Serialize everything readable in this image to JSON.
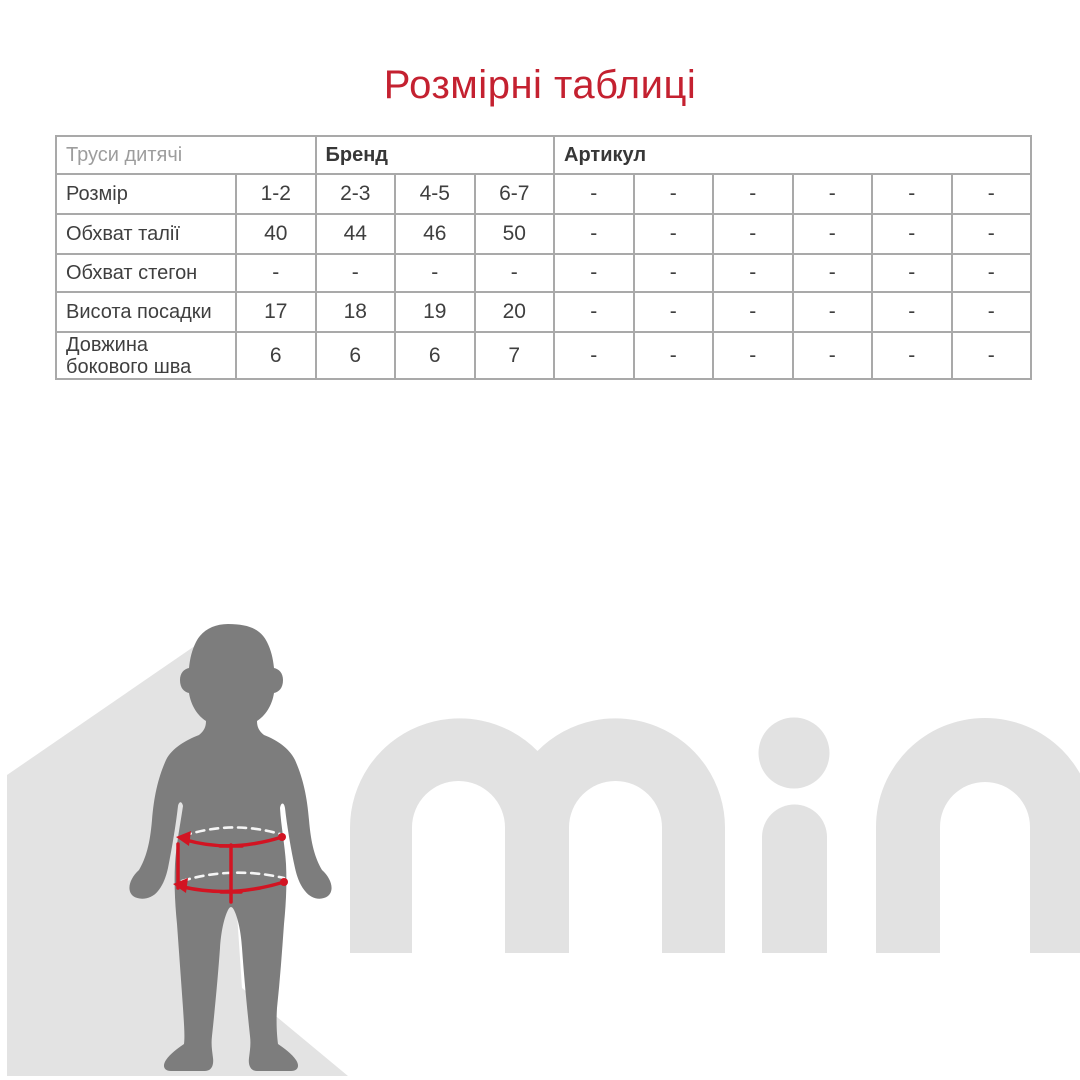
{
  "title": {
    "text": "Розмірні таблиці"
  },
  "size_table": {
    "header": {
      "product": "Труси дитячі",
      "brand": "Бренд",
      "article": "Артикул"
    },
    "rows": [
      {
        "label": "Розмір",
        "values": [
          "1-2",
          "2-3",
          "4-5",
          "6-7",
          "-",
          "-",
          "-",
          "-",
          "-",
          "-"
        ]
      },
      {
        "label": "Обхват талії",
        "values": [
          "40",
          "44",
          "46",
          "50",
          "-",
          "-",
          "-",
          "-",
          "-",
          "-"
        ]
      },
      {
        "label": "Обхват стегон",
        "values": [
          "-",
          "-",
          "-",
          "-",
          "-",
          "-",
          "-",
          "-",
          "-",
          "-"
        ]
      },
      {
        "label": "Висота посадки",
        "values": [
          "17",
          "18",
          "19",
          "20",
          "-",
          "-",
          "-",
          "-",
          "-",
          "-"
        ]
      },
      {
        "label": "Довжина бокового шва",
        "values": [
          "6",
          "6",
          "6",
          "7",
          "-",
          "-",
          "-",
          "-",
          "-",
          "-"
        ]
      }
    ]
  },
  "illustration": {
    "watermark_text": "min",
    "figure": "child-silhouette-front",
    "annotations": [
      "waist-girth-arrow",
      "hips-girth-arrow",
      "rise-height-line",
      "side-seam-line"
    ]
  },
  "colors": {
    "accent_red": "#c42130",
    "measure_red": "#d21422",
    "silhouette": "#7d7d7d",
    "background_shape": "#e3e3e3",
    "watermark": "#e2e2e2",
    "table_border": "#a9a9a9",
    "text_dark": "#3f3f3f",
    "text_muted": "#9d9d9d"
  }
}
